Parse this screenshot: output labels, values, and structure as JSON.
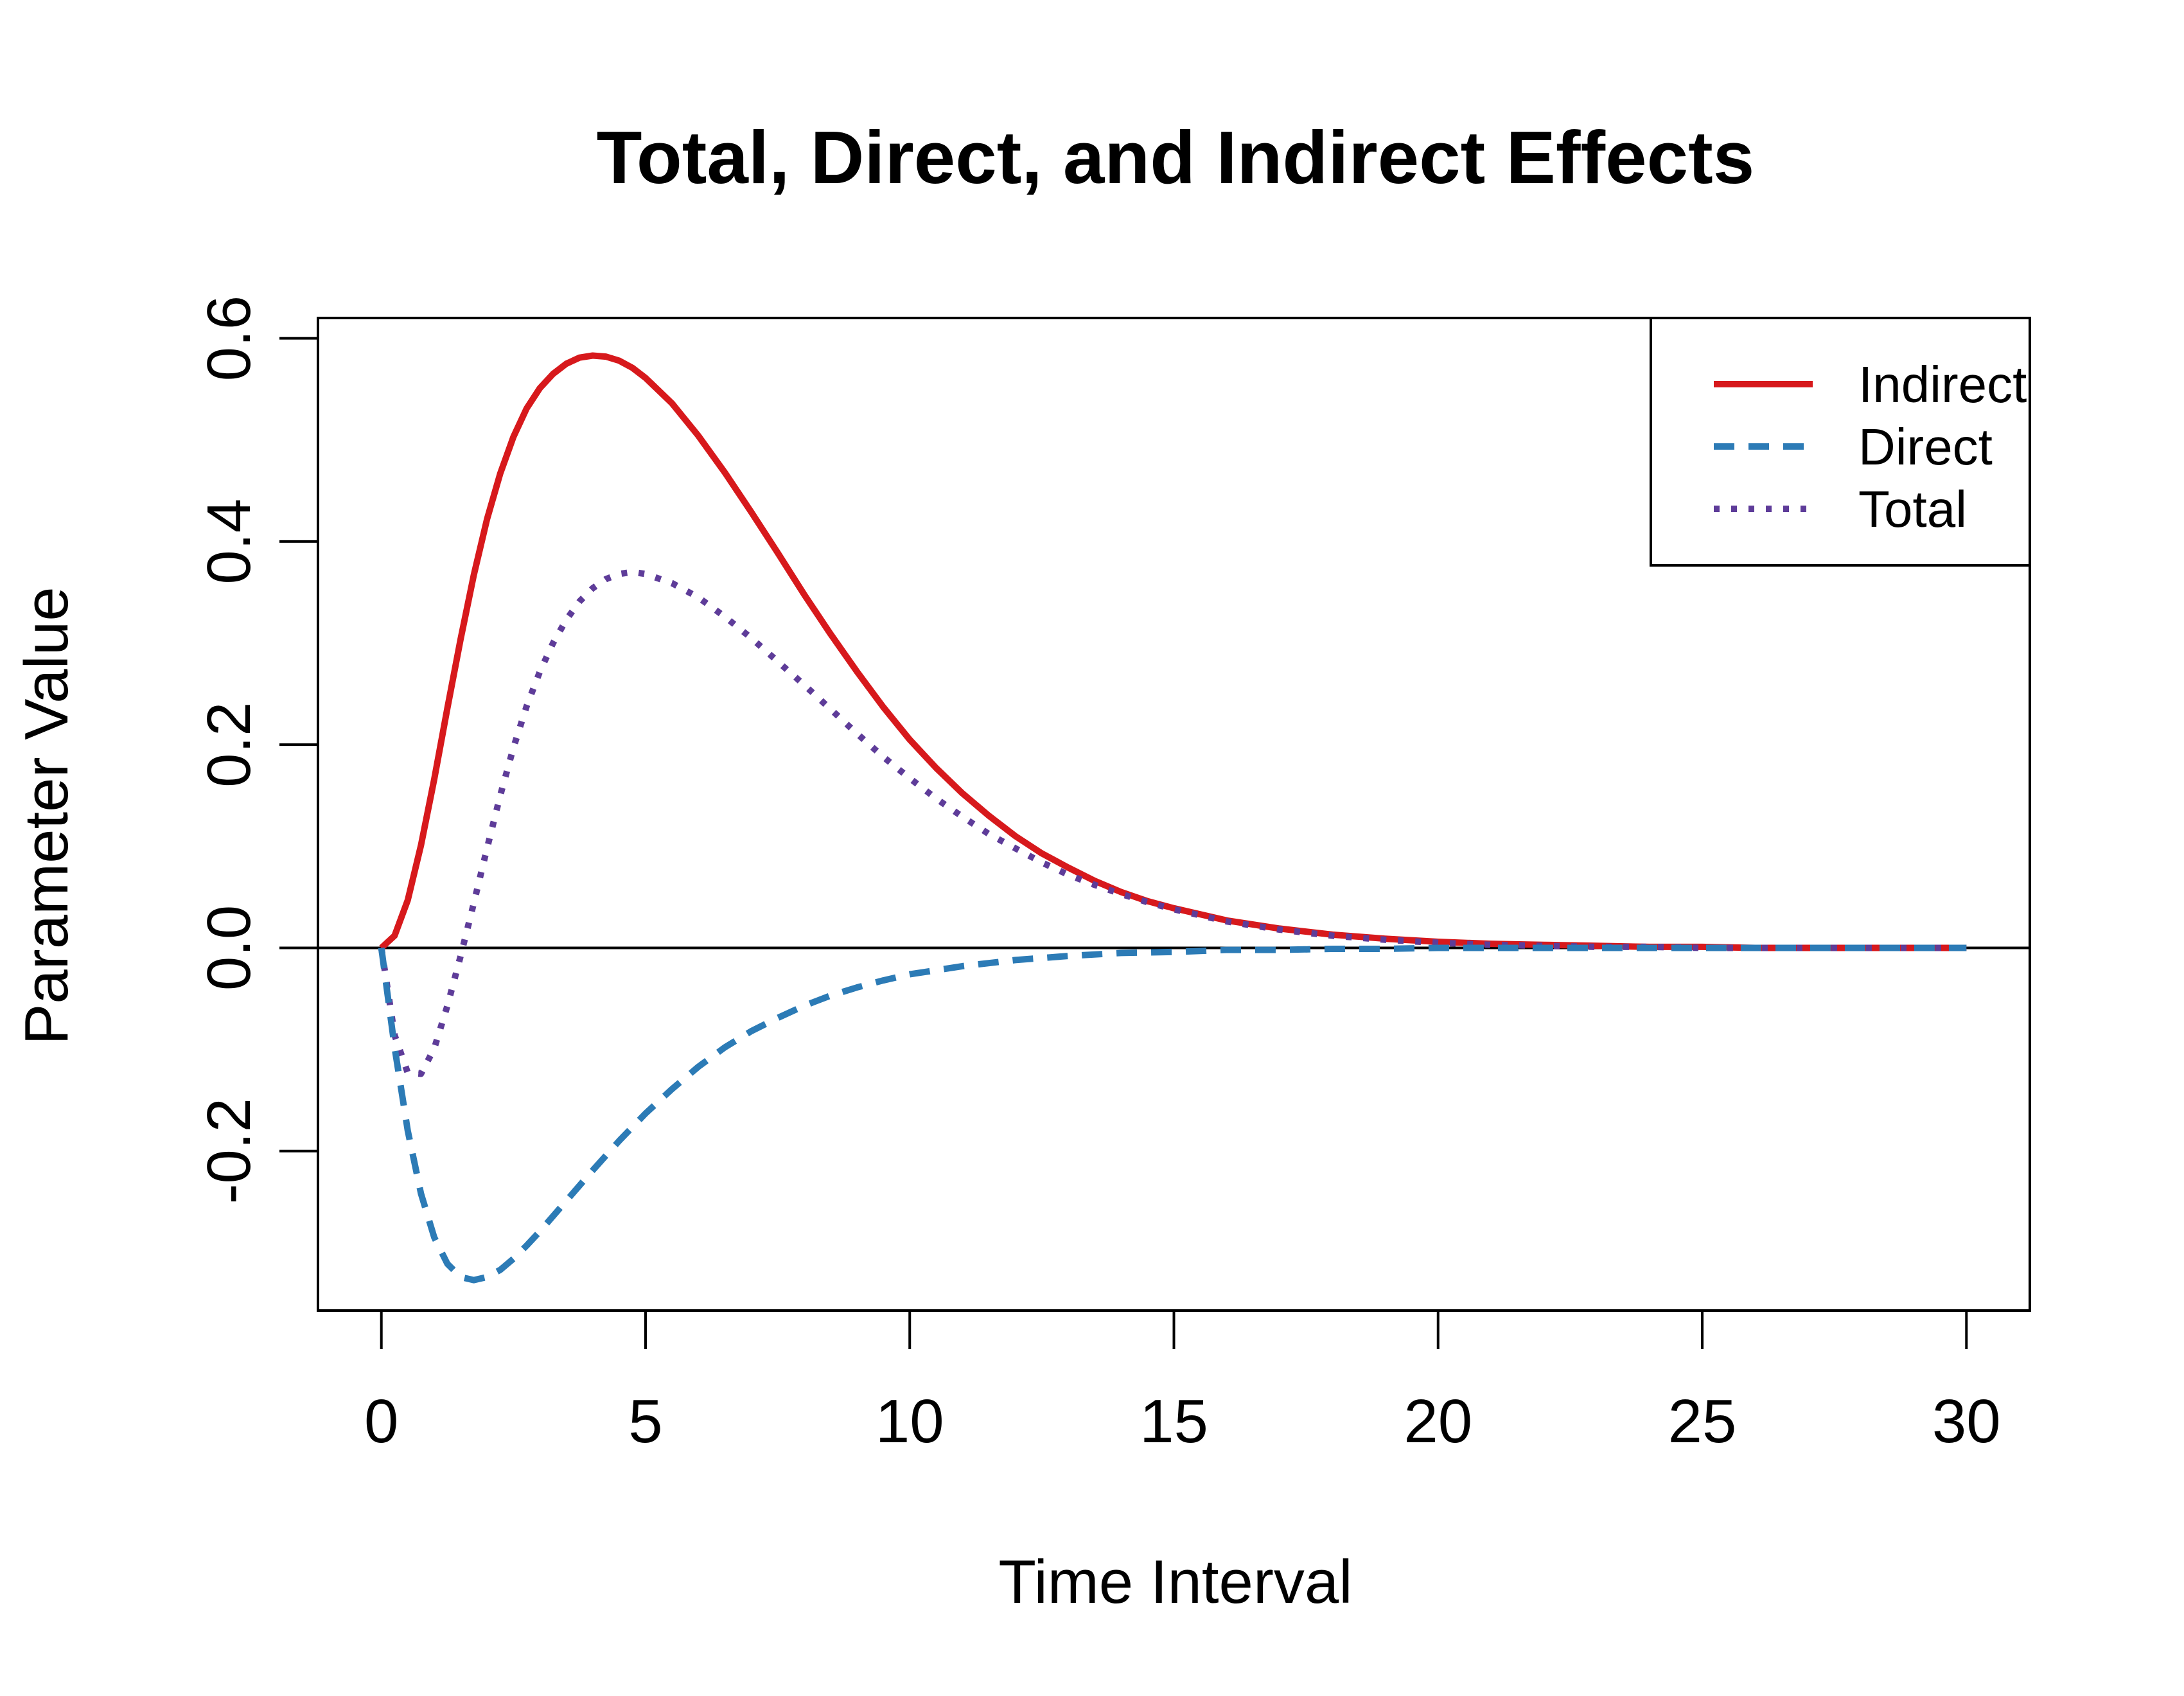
{
  "chart_data": {
    "type": "line",
    "title": "Total, Direct, and Indirect Effects",
    "xlabel": "Time Interval",
    "ylabel": "Parameter Value",
    "xlim": [
      -1.2,
      31.2
    ],
    "ylim": [
      -0.357,
      0.62
    ],
    "xticks": [
      0,
      5,
      10,
      15,
      20,
      25,
      30
    ],
    "xtick_labels": [
      "0",
      "5",
      "10",
      "15",
      "20",
      "25",
      "30"
    ],
    "yticks": [
      -0.2,
      0.0,
      0.2,
      0.4,
      0.6
    ],
    "ytick_labels": [
      "-0.2",
      "0.0",
      "0.2",
      "0.4",
      "0.6"
    ],
    "reference_line_y": 0.0,
    "grid": false,
    "legend_position": "top-right",
    "series": [
      {
        "name": "Indirect",
        "color": "#d7191c",
        "style": "solid",
        "x": [
          0,
          0.25,
          0.5,
          0.75,
          1,
          1.25,
          1.5,
          1.75,
          2,
          2.25,
          2.5,
          2.75,
          3,
          3.25,
          3.5,
          3.75,
          4,
          4.25,
          4.5,
          4.75,
          5,
          5.5,
          6,
          6.5,
          7,
          7.5,
          8,
          8.5,
          9,
          9.5,
          10,
          10.5,
          11,
          11.5,
          12,
          12.5,
          13,
          13.5,
          14,
          14.5,
          15,
          16,
          17,
          18,
          19,
          20,
          21,
          22,
          23,
          24,
          25,
          26,
          27,
          28,
          29,
          30
        ],
        "y": [
          0.0,
          0.012,
          0.047,
          0.101,
          0.166,
          0.236,
          0.304,
          0.367,
          0.422,
          0.467,
          0.503,
          0.531,
          0.551,
          0.565,
          0.575,
          0.581,
          0.583,
          0.582,
          0.578,
          0.571,
          0.561,
          0.536,
          0.504,
          0.468,
          0.429,
          0.389,
          0.348,
          0.309,
          0.272,
          0.237,
          0.205,
          0.177,
          0.152,
          0.13,
          0.11,
          0.093,
          0.079,
          0.066,
          0.055,
          0.046,
          0.039,
          0.027,
          0.019,
          0.013,
          0.009,
          0.006,
          0.004,
          0.003,
          0.002,
          0.001,
          0.001,
          0.0,
          0.0,
          0.0,
          0.0,
          0.0
        ]
      },
      {
        "name": "Direct",
        "color": "#2c7bb6",
        "style": "dashed",
        "x": [
          0,
          0.25,
          0.5,
          0.75,
          1,
          1.25,
          1.5,
          1.75,
          2,
          2.25,
          2.5,
          2.75,
          3,
          3.5,
          4,
          4.5,
          5,
          5.5,
          6,
          6.5,
          7,
          7.5,
          8,
          8.5,
          9,
          9.5,
          10,
          11,
          12,
          13,
          14,
          15,
          16,
          17,
          18,
          19,
          20,
          22,
          24,
          26,
          28,
          30
        ],
        "y": [
          0.0,
          -0.098,
          -0.18,
          -0.242,
          -0.285,
          -0.311,
          -0.324,
          -0.327,
          -0.324,
          -0.317,
          -0.306,
          -0.293,
          -0.279,
          -0.249,
          -0.219,
          -0.19,
          -0.163,
          -0.139,
          -0.117,
          -0.098,
          -0.082,
          -0.069,
          -0.057,
          -0.047,
          -0.039,
          -0.032,
          -0.026,
          -0.018,
          -0.012,
          -0.008,
          -0.005,
          -0.004,
          -0.002,
          -0.002,
          -0.001,
          -0.001,
          0.0,
          0.0,
          0.0,
          0.0,
          0.0,
          0.0
        ]
      },
      {
        "name": "Total",
        "color": "#5e3c99",
        "style": "dotted",
        "x": [
          0,
          0.25,
          0.5,
          0.75,
          1,
          1.25,
          1.5,
          1.75,
          2,
          2.25,
          2.5,
          2.75,
          3,
          3.25,
          3.5,
          3.75,
          4,
          4.25,
          4.5,
          4.75,
          5,
          5.5,
          6,
          6.5,
          7,
          7.5,
          8,
          8.5,
          9,
          9.5,
          10,
          10.5,
          11,
          11.5,
          12,
          12.5,
          13,
          13.5,
          14,
          14.5,
          15,
          16,
          17,
          18,
          19,
          20,
          21,
          22,
          23,
          24,
          25,
          26,
          27,
          28,
          29,
          30
        ],
        "y": [
          0.0,
          -0.086,
          -0.123,
          -0.124,
          -0.099,
          -0.057,
          -0.008,
          0.044,
          0.098,
          0.15,
          0.197,
          0.238,
          0.272,
          0.3,
          0.323,
          0.341,
          0.354,
          0.363,
          0.368,
          0.37,
          0.368,
          0.359,
          0.345,
          0.326,
          0.305,
          0.282,
          0.259,
          0.235,
          0.211,
          0.188,
          0.167,
          0.147,
          0.129,
          0.112,
          0.098,
          0.084,
          0.072,
          0.062,
          0.053,
          0.045,
          0.038,
          0.026,
          0.018,
          0.012,
          0.008,
          0.005,
          0.003,
          0.002,
          0.001,
          0.001,
          0.0,
          0.0,
          0.0,
          0.0,
          0.0,
          0.0
        ]
      }
    ]
  }
}
